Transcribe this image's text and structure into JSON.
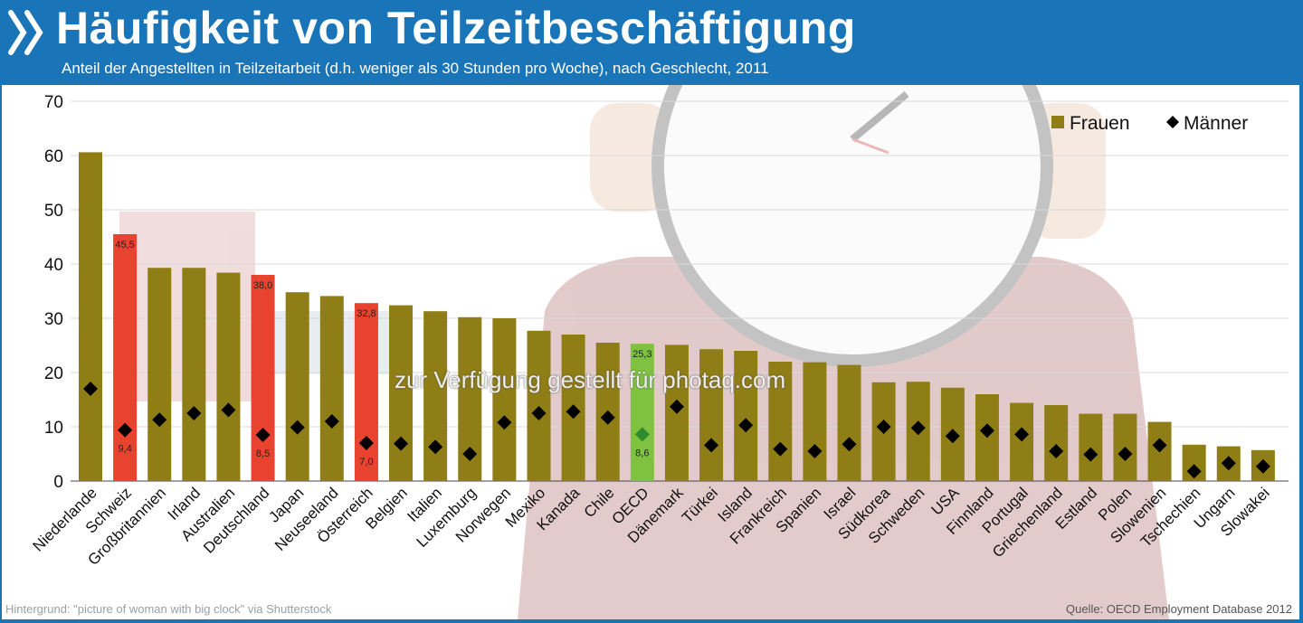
{
  "header": {
    "title": "Häufigkeit von Teilzeitbeschäftigung",
    "subtitle": "Anteil der Angestellten in Teilzeitarbeit (d.h. weniger als 30 Stunden pro Woche), nach Geschlecht, 2011",
    "logo_icon": "double-chevron-icon"
  },
  "watermark": "zur Verfügung gestellt für photaq.com",
  "footer": {
    "background_credit": "Hintergrund: \"picture of woman with big clock\" via Shutterstock",
    "source": "Quelle: OECD Employment Database 2012"
  },
  "colors": {
    "brand_blue": "#1a74b8",
    "frauen_bar": "#8f7d16",
    "highlight_red": "#e8432f",
    "highlight_green": "#7fc241",
    "maenner_marker": "#000000",
    "maenner_highlight_marker": "#2e8b2e"
  },
  "chart_data": {
    "type": "bar",
    "title": "Häufigkeit von Teilzeitbeschäftigung",
    "subtitle": "Anteil der Angestellten in Teilzeitarbeit (d.h. weniger als 30 Stunden pro Woche), nach Geschlecht, 2011",
    "ylim": [
      0,
      70
    ],
    "yticks": [
      0,
      10,
      20,
      30,
      40,
      50,
      60,
      70
    ],
    "grid": true,
    "legend_position": "top-right",
    "categories": [
      "Niederlande",
      "Schweiz",
      "Großbritannien",
      "Irland",
      "Australien",
      "Deutschland",
      "Japan",
      "Neuseeland",
      "Österreich",
      "Belgien",
      "Italien",
      "Luxemburg",
      "Norwegen",
      "Mexiko",
      "Kanada",
      "Chile",
      "OECD",
      "Dänemark",
      "Türkei",
      "Island",
      "Frankreich",
      "Spanien",
      "Israel",
      "Südkorea",
      "Schweden",
      "USA",
      "Finnland",
      "Portugal",
      "Griechenland",
      "Estland",
      "Polen",
      "Slowenien",
      "Tschechien",
      "Ungarn",
      "Slowakei"
    ],
    "series": [
      {
        "name": "Frauen",
        "marker": "bar",
        "values": [
          60.6,
          45.5,
          39.3,
          39.3,
          38.4,
          38.0,
          34.8,
          34.1,
          32.8,
          32.4,
          31.3,
          30.2,
          30.0,
          27.7,
          27.0,
          25.5,
          25.3,
          25.1,
          24.3,
          24.0,
          22.0,
          21.9,
          21.4,
          18.2,
          18.3,
          17.2,
          16.0,
          14.4,
          14.0,
          12.4,
          12.4,
          10.9,
          6.7,
          6.4,
          5.7
        ]
      },
      {
        "name": "Männer",
        "marker": "diamond",
        "values": [
          17.0,
          9.4,
          11.3,
          12.5,
          13.1,
          8.5,
          9.9,
          11.0,
          7.0,
          6.9,
          6.3,
          5.0,
          10.8,
          12.5,
          12.8,
          11.7,
          8.6,
          13.7,
          6.6,
          10.3,
          5.9,
          5.5,
          6.8,
          10.0,
          9.8,
          8.3,
          9.3,
          8.6,
          5.5,
          4.9,
          5.0,
          6.6,
          1.8,
          3.3,
          2.7
        ]
      }
    ],
    "highlights": {
      "Schweiz": {
        "color": "#e8432f",
        "frauen_label": "45,5",
        "maenner_label": "9,4"
      },
      "Deutschland": {
        "color": "#e8432f",
        "frauen_label": "38,0",
        "maenner_label": "8,5"
      },
      "Österreich": {
        "color": "#e8432f",
        "frauen_label": "32,8",
        "maenner_label": "7,0"
      },
      "OECD": {
        "color": "#7fc241",
        "frauen_label": "25,3",
        "maenner_label": "8,6"
      }
    }
  }
}
